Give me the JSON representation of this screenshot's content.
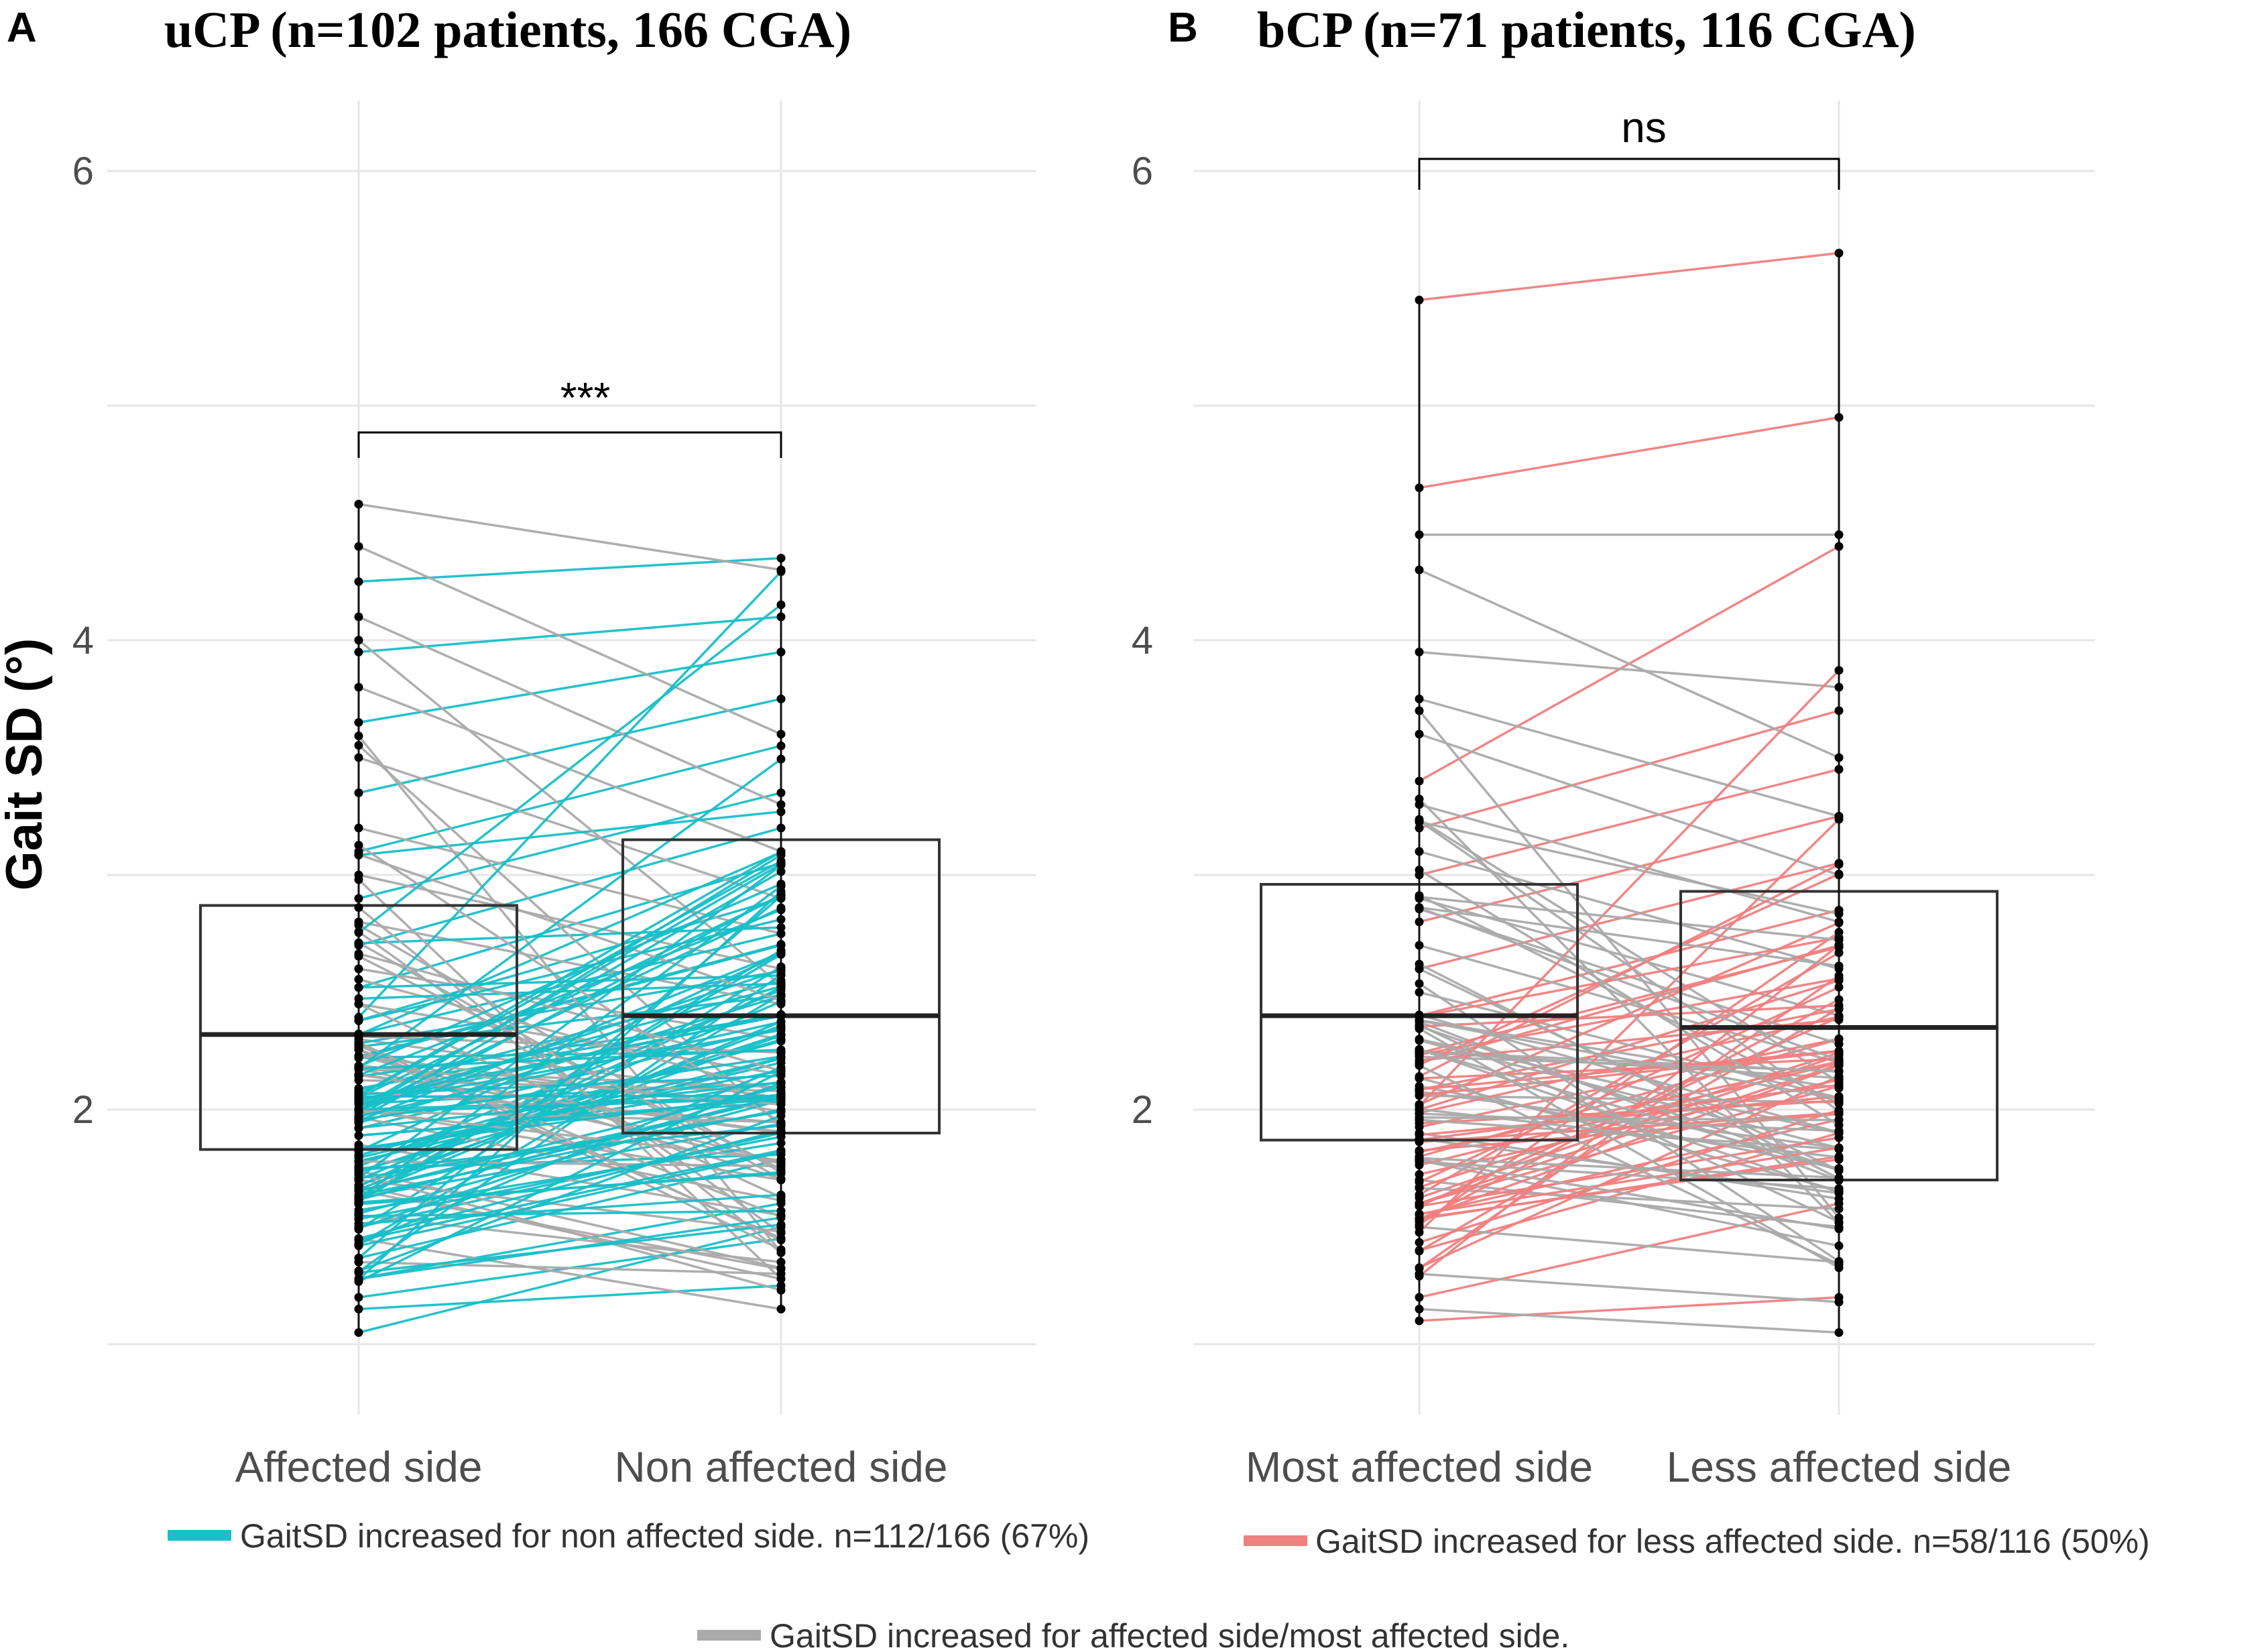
{
  "y_axis": {
    "label": "Gait SD (°)",
    "ticks": [
      "2",
      "4",
      "6"
    ]
  },
  "legend": [
    {
      "label": "GaitSD increased for non affected side. n=112/166 (67%)",
      "color": "#17BFC8"
    },
    {
      "label": "GaitSD increased for less affected side. n=58/116 (50%)",
      "color": "#F08080"
    },
    {
      "label": "GaitSD increased for affected side/most affected side.",
      "color": "#AAAAAA"
    }
  ],
  "chart_data": [
    {
      "panel": "A",
      "type": "box-paired",
      "title": "uCP (n=102 patients, 166 CGA)",
      "categories": [
        "Affected side",
        "Non affected side"
      ],
      "ylabel": "Gait SD (°)",
      "ylim": [
        0.7,
        6.3
      ],
      "significance": "***",
      "box": [
        {
          "category": "Affected side",
          "q1": 1.83,
          "median": 2.32,
          "q3": 2.87
        },
        {
          "category": "Non affected side",
          "q1": 1.9,
          "median": 2.4,
          "q3": 3.15
        }
      ],
      "increase_color": "#17BFC8",
      "decrease_color": "#AAAAAA",
      "pairs_count": 166,
      "increased_count": 112,
      "highlighted_pairs": [
        [
          1.05,
          1.5
        ],
        [
          1.15,
          1.25
        ],
        [
          1.2,
          1.45
        ],
        [
          1.28,
          1.6
        ],
        [
          1.35,
          1.3
        ],
        [
          1.45,
          1.15
        ],
        [
          1.5,
          1.9
        ],
        [
          1.55,
          1.35
        ],
        [
          1.62,
          2.05
        ],
        [
          1.7,
          1.48
        ],
        [
          1.78,
          2.2
        ],
        [
          1.85,
          1.55
        ],
        [
          1.92,
          2.35
        ],
        [
          2.0,
          1.7
        ],
        [
          2.08,
          2.55
        ],
        [
          2.15,
          1.9
        ],
        [
          2.22,
          2.7
        ],
        [
          2.3,
          2.05
        ],
        [
          2.38,
          2.9
        ],
        [
          2.45,
          2.15
        ],
        [
          2.52,
          3.05
        ],
        [
          2.6,
          2.3
        ],
        [
          2.7,
          3.2
        ],
        [
          2.8,
          2.45
        ],
        [
          2.9,
          3.35
        ],
        [
          3.0,
          2.6
        ],
        [
          3.1,
          3.55
        ],
        [
          3.2,
          2.75
        ],
        [
          3.35,
          3.75
        ],
        [
          3.5,
          2.9
        ],
        [
          3.65,
          3.95
        ],
        [
          3.8,
          3.1
        ],
        [
          3.95,
          4.1
        ],
        [
          4.1,
          3.3
        ],
        [
          4.25,
          4.35
        ],
        [
          4.4,
          3.6
        ],
        [
          4.58,
          4.3
        ]
      ]
    },
    {
      "panel": "B",
      "type": "box-paired",
      "title": "bCP (n=71 patients, 116 CGA)",
      "categories": [
        "Most affected side",
        "Less affected side"
      ],
      "ylabel": "Gait SD (°)",
      "ylim": [
        0.7,
        6.3
      ],
      "significance": "ns",
      "box": [
        {
          "category": "Most affected side",
          "q1": 1.87,
          "median": 2.4,
          "q3": 2.96
        },
        {
          "category": "Less affected side",
          "q1": 1.7,
          "median": 2.35,
          "q3": 2.93
        }
      ],
      "increase_color": "#F08080",
      "decrease_color": "#AAAAAA",
      "pairs_count": 116,
      "increased_count": 58,
      "highlighted_pairs": [
        [
          1.1,
          1.2
        ],
        [
          1.15,
          1.05
        ],
        [
          1.2,
          1.6
        ],
        [
          1.3,
          1.18
        ],
        [
          1.4,
          1.9
        ],
        [
          1.5,
          1.35
        ],
        [
          1.6,
          2.1
        ],
        [
          1.7,
          1.5
        ],
        [
          1.8,
          2.3
        ],
        [
          1.9,
          1.62
        ],
        [
          2.0,
          2.55
        ],
        [
          2.1,
          1.75
        ],
        [
          2.2,
          2.7
        ],
        [
          2.3,
          1.9
        ],
        [
          2.4,
          2.85
        ],
        [
          2.5,
          2.05
        ],
        [
          2.6,
          3.05
        ],
        [
          2.7,
          2.2
        ],
        [
          2.8,
          3.25
        ],
        [
          2.9,
          2.4
        ],
        [
          3.0,
          3.45
        ],
        [
          3.1,
          2.6
        ],
        [
          3.2,
          3.7
        ],
        [
          3.3,
          2.8
        ],
        [
          3.4,
          4.4
        ],
        [
          3.6,
          3.0
        ],
        [
          3.75,
          3.25
        ],
        [
          3.95,
          3.8
        ],
        [
          4.3,
          3.5
        ],
        [
          4.45,
          4.45
        ],
        [
          4.65,
          4.95
        ],
        [
          5.45,
          5.65
        ]
      ]
    }
  ]
}
